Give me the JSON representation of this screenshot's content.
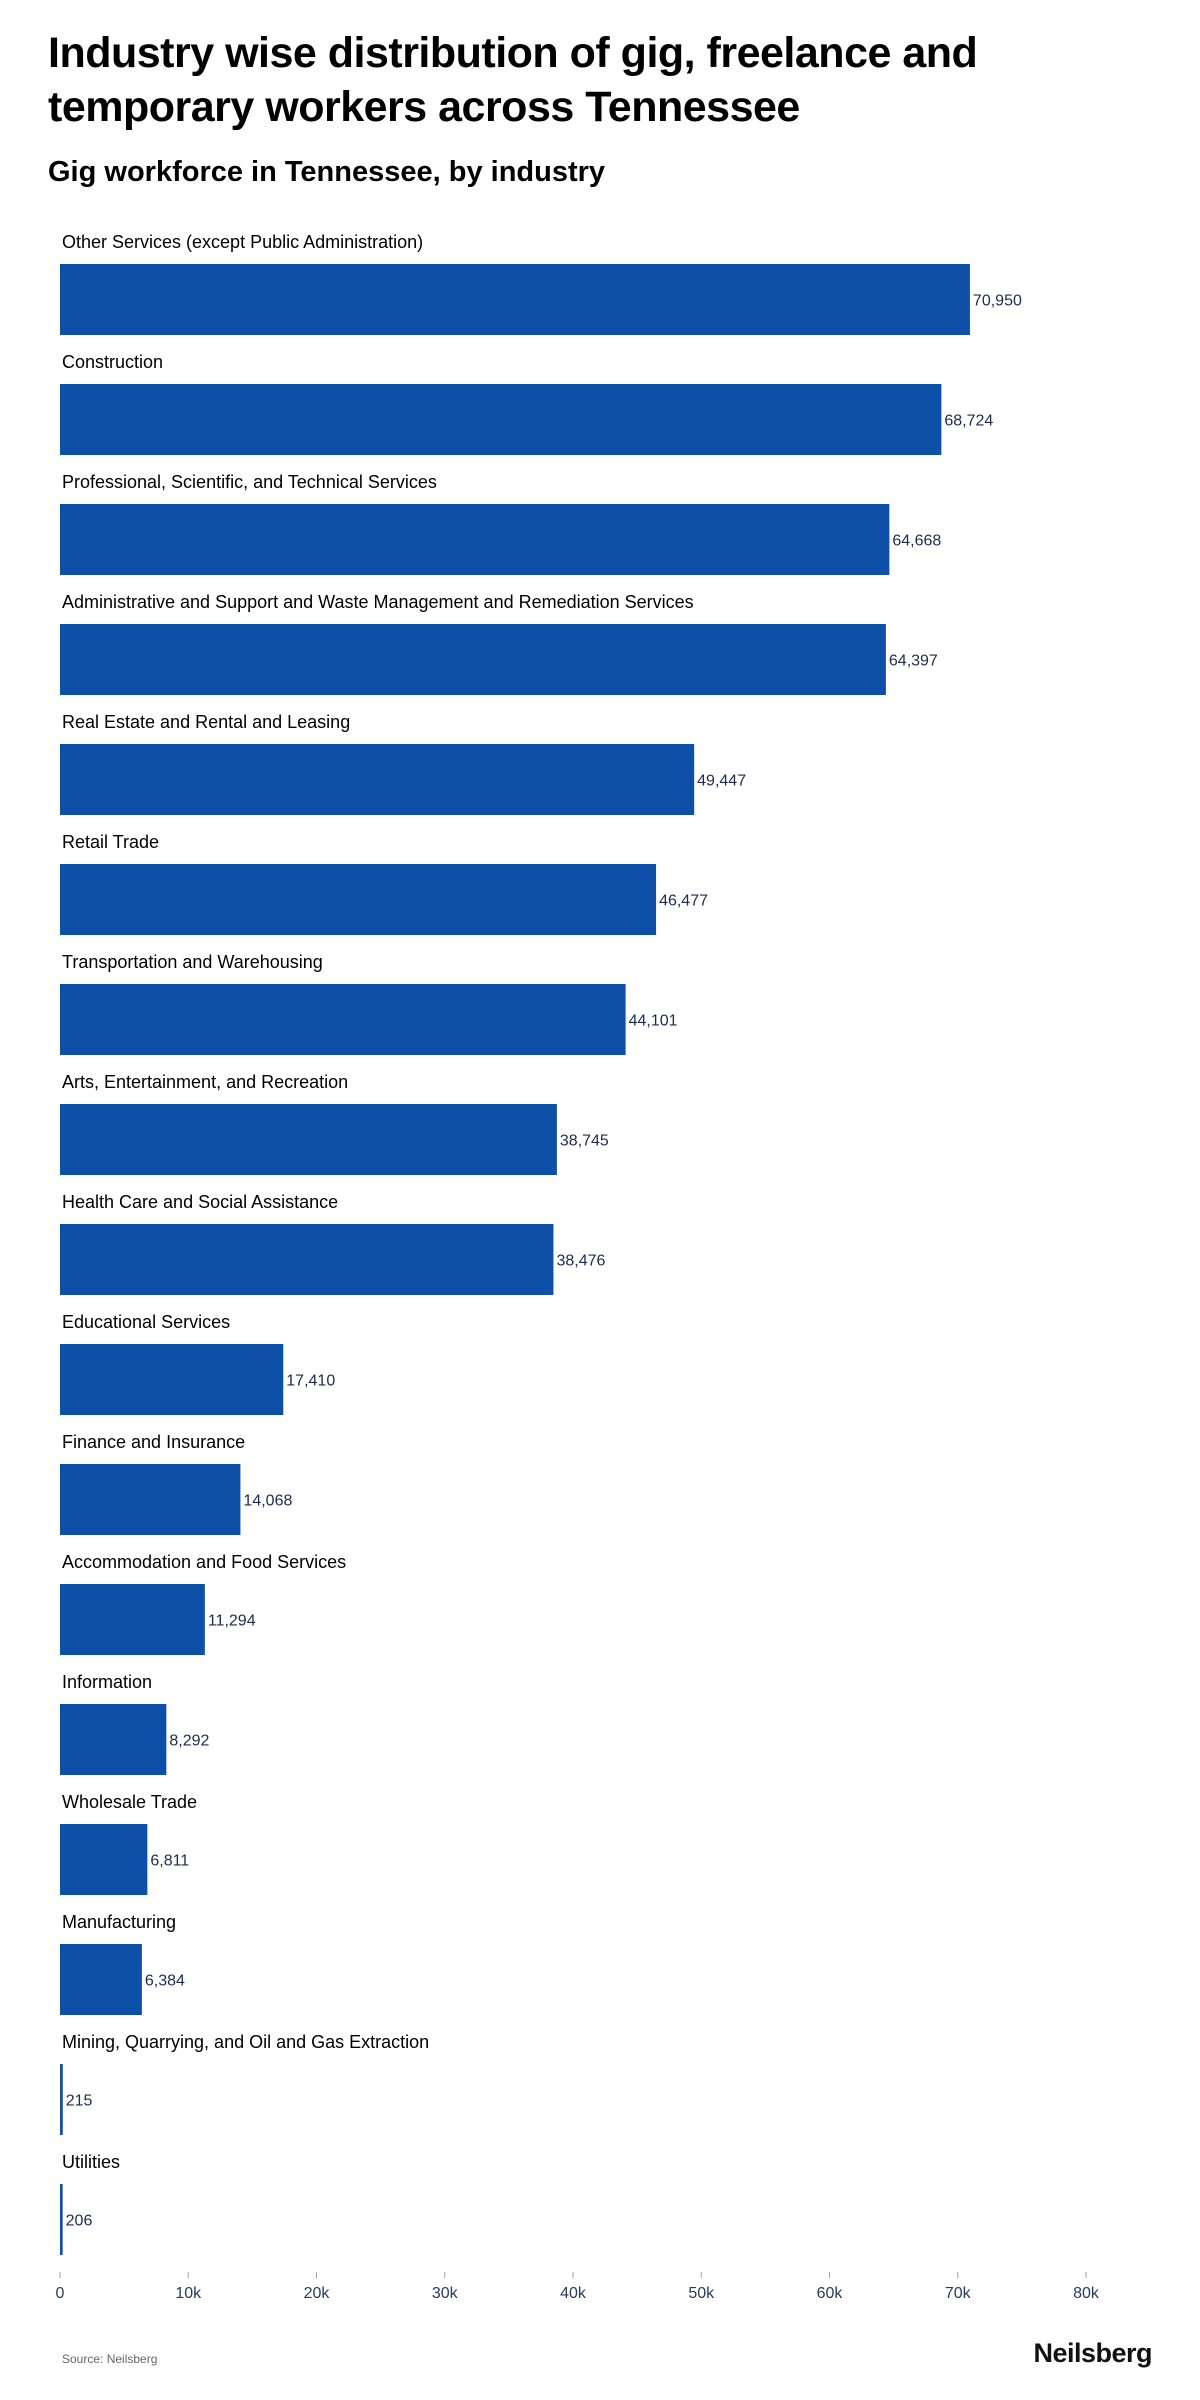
{
  "title": "Industry wise distribution of gig, freelance and temporary workers across Tennessee",
  "subtitle": "Gig workforce in Tennessee, by industry",
  "source": "Source: Neilsberg",
  "brand": "Neilsberg",
  "colors": {
    "bar": "#0e4fa8",
    "value_label": "#1d2b4f",
    "axis_tick": "#2a3a5c"
  },
  "chart_data": {
    "type": "bar",
    "orientation": "horizontal",
    "title": "Gig workforce in Tennessee, by industry",
    "xlabel": "",
    "ylabel": "",
    "xlim": [
      0,
      80000
    ],
    "xticks": [
      {
        "value": 0,
        "label": "0"
      },
      {
        "value": 10000,
        "label": "10k"
      },
      {
        "value": 20000,
        "label": "20k"
      },
      {
        "value": 30000,
        "label": "30k"
      },
      {
        "value": 40000,
        "label": "40k"
      },
      {
        "value": 50000,
        "label": "50k"
      },
      {
        "value": 60000,
        "label": "60k"
      },
      {
        "value": 70000,
        "label": "70k"
      },
      {
        "value": 80000,
        "label": "80k"
      }
    ],
    "grid": false,
    "categories": [
      "Other Services (except Public Administration)",
      "Construction",
      "Professional, Scientific, and Technical Services",
      "Administrative and Support and Waste Management and Remediation Services",
      "Real Estate and Rental and Leasing",
      "Retail Trade",
      "Transportation and Warehousing",
      "Arts, Entertainment, and Recreation",
      "Health Care and Social Assistance",
      "Educational Services",
      "Finance and Insurance",
      "Accommodation and Food Services",
      "Information",
      "Wholesale Trade",
      "Manufacturing",
      "Mining, Quarrying, and Oil and Gas Extraction",
      "Utilities"
    ],
    "values": [
      70950,
      68724,
      64668,
      64397,
      49447,
      46477,
      44101,
      38745,
      38476,
      17410,
      14068,
      11294,
      8292,
      6811,
      6384,
      215,
      206
    ],
    "value_labels": [
      "70,950",
      "68,724",
      "64,668",
      "64,397",
      "49,447",
      "46,477",
      "44,101",
      "38,745",
      "38,476",
      "17,410",
      "14,068",
      "11,294",
      "8,292",
      "6,811",
      "6,384",
      "215",
      "206"
    ]
  }
}
